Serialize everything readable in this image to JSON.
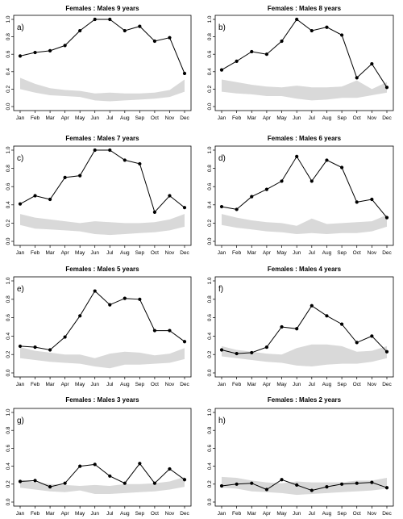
{
  "chart_data": [
    {
      "type": "line",
      "title": "Females : Males 9 years",
      "panel_label": "a)",
      "categories": [
        "Jan",
        "Feb",
        "Mar",
        "Apr",
        "May",
        "Jun",
        "Jul",
        "Aug",
        "Sep",
        "Oct",
        "Nov",
        "Dec"
      ],
      "ylim": [
        0,
        1.0
      ],
      "yticks": [
        "0.0",
        "0.2",
        "0.4",
        "0.6",
        "0.8",
        "1.0"
      ],
      "series": [
        {
          "values": [
            0.58,
            0.62,
            0.64,
            0.7,
            0.87,
            1.0,
            1.0,
            0.87,
            0.92,
            0.75,
            0.79,
            0.38
          ]
        }
      ],
      "band": {
        "lower": [
          0.2,
          0.16,
          0.13,
          0.12,
          0.11,
          0.07,
          0.06,
          0.07,
          0.08,
          0.09,
          0.11,
          0.17
        ],
        "upper": [
          0.33,
          0.26,
          0.21,
          0.19,
          0.18,
          0.15,
          0.16,
          0.15,
          0.15,
          0.16,
          0.19,
          0.31
        ]
      }
    },
    {
      "type": "line",
      "title": "Females : Males 8 years",
      "panel_label": "b)",
      "categories": [
        "Jan",
        "Feb",
        "Mar",
        "Apr",
        "May",
        "Jun",
        "Jul",
        "Aug",
        "Sep",
        "Oct",
        "Nov",
        "Dec"
      ],
      "ylim": [
        0,
        1.0
      ],
      "yticks": [
        "0.0",
        "0.2",
        "0.4",
        "0.6",
        "0.8",
        "1.0"
      ],
      "series": [
        {
          "values": [
            0.42,
            0.52,
            0.63,
            0.6,
            0.75,
            1.0,
            0.87,
            0.91,
            0.82,
            0.33,
            0.49,
            0.22
          ]
        }
      ],
      "band": {
        "lower": [
          0.17,
          0.15,
          0.14,
          0.12,
          0.12,
          0.09,
          0.07,
          0.08,
          0.1,
          0.1,
          0.13,
          0.16
        ],
        "upper": [
          0.31,
          0.28,
          0.25,
          0.23,
          0.22,
          0.24,
          0.22,
          0.22,
          0.23,
          0.3,
          0.2,
          0.28
        ]
      }
    },
    {
      "type": "line",
      "title": "Females : Males 7 years",
      "panel_label": "c)",
      "categories": [
        "Jan",
        "Feb",
        "Mar",
        "Apr",
        "May",
        "Jun",
        "Jul",
        "Aug",
        "Sep",
        "Oct",
        "Nov",
        "Dec"
      ],
      "ylim": [
        0,
        1.0
      ],
      "yticks": [
        "0.0",
        "0.2",
        "0.4",
        "0.6",
        "0.8",
        "1.0"
      ],
      "series": [
        {
          "values": [
            0.41,
            0.5,
            0.46,
            0.7,
            0.72,
            1.0,
            1.0,
            0.89,
            0.85,
            0.32,
            0.5,
            0.37
          ]
        }
      ],
      "band": {
        "lower": [
          0.18,
          0.14,
          0.13,
          0.12,
          0.11,
          0.08,
          0.07,
          0.08,
          0.09,
          0.1,
          0.12,
          0.16
        ],
        "upper": [
          0.3,
          0.26,
          0.24,
          0.22,
          0.2,
          0.22,
          0.21,
          0.2,
          0.2,
          0.21,
          0.24,
          0.3
        ]
      }
    },
    {
      "type": "line",
      "title": "Females : Males 6 years",
      "panel_label": "d)",
      "categories": [
        "Jan",
        "Feb",
        "Mar",
        "Apr",
        "May",
        "Jun",
        "Jul",
        "Aug",
        "Sep",
        "Oct",
        "Nov",
        "Dec"
      ],
      "ylim": [
        0,
        1.0
      ],
      "yticks": [
        "0.0",
        "0.2",
        "0.4",
        "0.6",
        "0.8",
        "1.0"
      ],
      "series": [
        {
          "values": [
            0.38,
            0.35,
            0.49,
            0.57,
            0.66,
            0.93,
            0.66,
            0.89,
            0.81,
            0.43,
            0.46,
            0.26
          ]
        }
      ],
      "band": {
        "lower": [
          0.18,
          0.15,
          0.13,
          0.11,
          0.1,
          0.08,
          0.09,
          0.08,
          0.09,
          0.09,
          0.11,
          0.16
        ],
        "upper": [
          0.3,
          0.26,
          0.23,
          0.21,
          0.2,
          0.17,
          0.25,
          0.19,
          0.2,
          0.21,
          0.22,
          0.29
        ]
      }
    },
    {
      "type": "line",
      "title": "Females : Males 5 years",
      "panel_label": "e)",
      "categories": [
        "Jan",
        "Feb",
        "Mar",
        "Apr",
        "May",
        "Jun",
        "Jul",
        "Aug",
        "Sep",
        "Oct",
        "Nov",
        "Dec"
      ],
      "ylim": [
        0,
        1.0
      ],
      "yticks": [
        "0.0",
        "0.2",
        "0.4",
        "0.6",
        "0.8",
        "1.0"
      ],
      "series": [
        {
          "values": [
            0.29,
            0.28,
            0.25,
            0.39,
            0.62,
            0.89,
            0.74,
            0.81,
            0.8,
            0.46,
            0.46,
            0.34
          ]
        }
      ],
      "band": {
        "lower": [
          0.16,
          0.14,
          0.12,
          0.11,
          0.1,
          0.07,
          0.05,
          0.09,
          0.09,
          0.1,
          0.11,
          0.15
        ],
        "upper": [
          0.28,
          0.24,
          0.22,
          0.2,
          0.2,
          0.16,
          0.21,
          0.23,
          0.22,
          0.19,
          0.21,
          0.27
        ]
      }
    },
    {
      "type": "line",
      "title": "Females : Males 4 years",
      "panel_label": "f)",
      "categories": [
        "Jan",
        "Feb",
        "Mar",
        "Apr",
        "May",
        "Jun",
        "Jul",
        "Aug",
        "Sep",
        "Oct",
        "Nov",
        "Dec"
      ],
      "ylim": [
        0,
        1.0
      ],
      "yticks": [
        "0.0",
        "0.2",
        "0.4",
        "0.6",
        "0.8",
        "1.0"
      ],
      "series": [
        {
          "values": [
            0.25,
            0.21,
            0.22,
            0.28,
            0.5,
            0.48,
            0.73,
            0.62,
            0.53,
            0.33,
            0.4,
            0.23
          ]
        }
      ],
      "band": {
        "lower": [
          0.18,
          0.16,
          0.14,
          0.12,
          0.11,
          0.08,
          0.07,
          0.09,
          0.1,
          0.1,
          0.12,
          0.16
        ],
        "upper": [
          0.29,
          0.25,
          0.23,
          0.21,
          0.2,
          0.27,
          0.31,
          0.31,
          0.29,
          0.23,
          0.24,
          0.29
        ]
      }
    },
    {
      "type": "line",
      "title": "Females : Males 3 years",
      "panel_label": "g)",
      "categories": [
        "Jan",
        "Feb",
        "Mar",
        "Apr",
        "May",
        "Jun",
        "Jul",
        "Aug",
        "Sep",
        "Oct",
        "Nov",
        "Dec"
      ],
      "ylim": [
        0,
        1.0
      ],
      "yticks": [
        "0.0",
        "0.2",
        "0.4",
        "0.6",
        "0.8",
        "1.0"
      ],
      "series": [
        {
          "values": [
            0.23,
            0.24,
            0.17,
            0.21,
            0.4,
            0.42,
            0.29,
            0.21,
            0.43,
            0.21,
            0.37,
            0.25
          ]
        }
      ],
      "band": {
        "lower": [
          0.16,
          0.14,
          0.12,
          0.11,
          0.13,
          0.09,
          0.09,
          0.1,
          0.11,
          0.12,
          0.14,
          0.17
        ],
        "upper": [
          0.25,
          0.22,
          0.2,
          0.19,
          0.18,
          0.19,
          0.18,
          0.2,
          0.2,
          0.21,
          0.23,
          0.28
        ]
      }
    },
    {
      "type": "line",
      "title": "Females : Males 2 years",
      "panel_label": "h)",
      "categories": [
        "Jan",
        "Feb",
        "Mar",
        "Apr",
        "May",
        "Jun",
        "Jul",
        "Aug",
        "Sep",
        "Oct",
        "Nov",
        "Dec"
      ],
      "ylim": [
        0,
        1.0
      ],
      "yticks": [
        "0.0",
        "0.2",
        "0.4",
        "0.6",
        "0.8",
        "1.0"
      ],
      "series": [
        {
          "values": [
            0.18,
            0.2,
            0.21,
            0.14,
            0.25,
            0.19,
            0.13,
            0.17,
            0.2,
            0.21,
            0.22,
            0.16
          ]
        }
      ],
      "band": {
        "lower": [
          0.16,
          0.15,
          0.12,
          0.11,
          0.1,
          0.08,
          0.09,
          0.1,
          0.11,
          0.12,
          0.13,
          0.15
        ],
        "upper": [
          0.28,
          0.27,
          0.24,
          0.22,
          0.21,
          0.23,
          0.22,
          0.22,
          0.22,
          0.24,
          0.24,
          0.27
        ]
      }
    }
  ]
}
